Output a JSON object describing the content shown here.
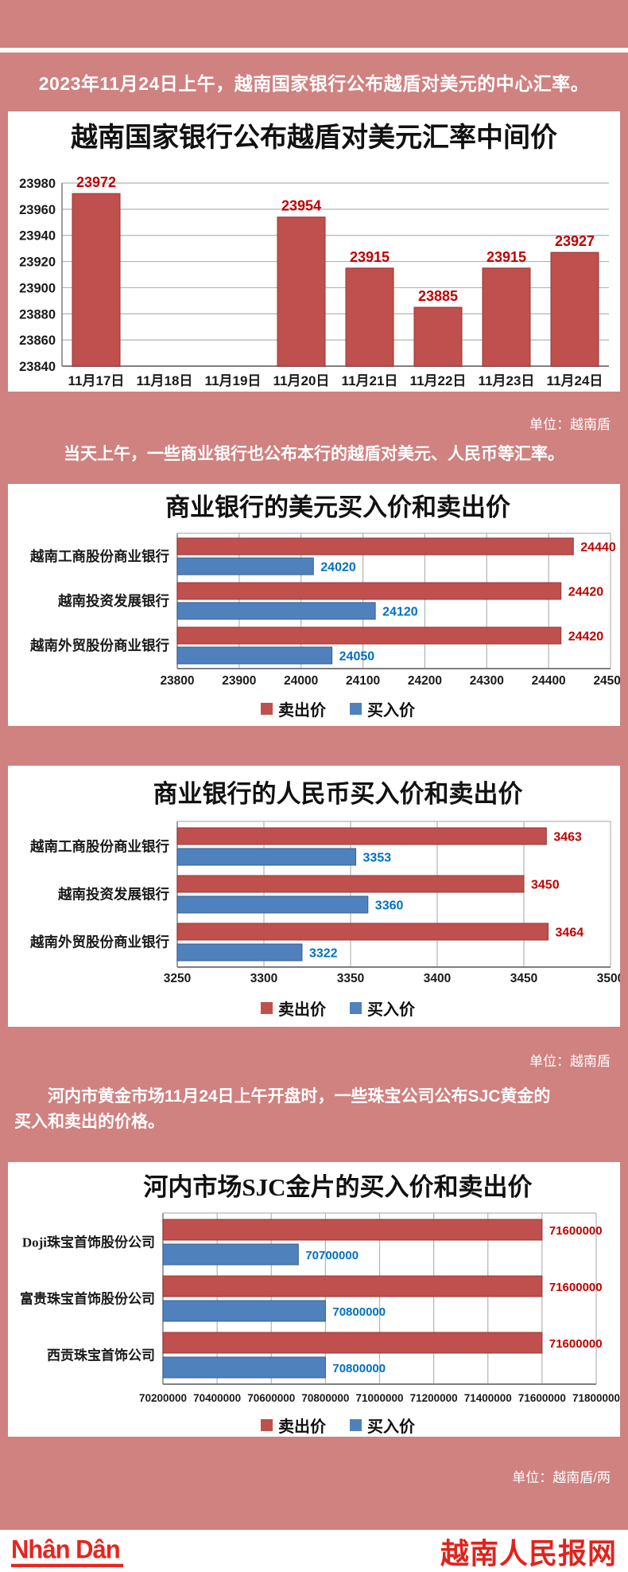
{
  "theme": {
    "background_pink": "#cf8280",
    "bar_red": "#c0504d",
    "bar_blue": "#4f81bd",
    "label_red": "#c00000",
    "label_blue": "#0070c0"
  },
  "banners": {
    "intro": "2023年11月24日上午，越南国家银行公布越盾对美元的中心汇率。",
    "banks_note": "当天上午，一些商业银行也公布本行的越盾对美元、人民币等汇率。",
    "gold_note_line1": "河内市黄金市场11月24日上午开盘时，一些珠宝公司公布SJC黄金的",
    "gold_note_line2": "买入和卖出的价格。"
  },
  "units": {
    "central_rate": "单位：越南盾",
    "cny_chart": "单位：越南盾",
    "gold_chart": "单位：越南盾/两"
  },
  "footer": {
    "logo": "Nhân Dân",
    "site_name": "越南人民报网"
  },
  "chart_data": [
    {
      "id": "central-rate",
      "type": "bar",
      "title": "越南国家银行公布越盾对美元汇率中间价",
      "categories": [
        "11月17日",
        "11月18日",
        "11月19日",
        "11月20日",
        "11月21日",
        "11月22日",
        "11月23日",
        "11月24日"
      ],
      "values": [
        23972,
        null,
        null,
        23954,
        23915,
        23885,
        23915,
        23927
      ],
      "ylim": [
        23840,
        23980
      ],
      "ystep": 20,
      "bar_color": "#c0504d",
      "label_color": "#c00000",
      "unit": "越南盾",
      "grid": true
    },
    {
      "id": "usd-bank-rates",
      "type": "hbar",
      "title": "商业银行的美元买入价和卖出价",
      "categories": [
        "越南工商股份商业银行",
        "越南投资发展银行",
        "越南外贸股份商业银行"
      ],
      "series": [
        {
          "name": "卖出价",
          "color": "#c0504d",
          "stroke": "#953735",
          "label_color": "#c00000",
          "values": [
            24440,
            24420,
            24420
          ]
        },
        {
          "name": "买入价",
          "color": "#4f81bd",
          "stroke": "#366092",
          "label_color": "#0070c0",
          "values": [
            24020,
            24120,
            24050
          ]
        }
      ],
      "xlim": [
        23800,
        24500
      ],
      "xstep": 100,
      "legend_position": "bottom",
      "grid": true
    },
    {
      "id": "cny-bank-rates",
      "type": "hbar",
      "title": "商业银行的人民币买入价和卖出价",
      "categories": [
        "越南工商股份商业银行",
        "越南投资发展银行",
        "越南外贸股份商业银行"
      ],
      "series": [
        {
          "name": "卖出价",
          "color": "#c0504d",
          "stroke": "#953735",
          "label_color": "#c00000",
          "values": [
            3463,
            3450,
            3464
          ]
        },
        {
          "name": "买入价",
          "color": "#4f81bd",
          "stroke": "#366092",
          "label_color": "#0070c0",
          "values": [
            3353,
            3360,
            3322
          ]
        }
      ],
      "xlim": [
        3250,
        3500
      ],
      "xstep": 50,
      "legend_position": "bottom",
      "grid": true
    },
    {
      "id": "sjc-gold-prices",
      "type": "hbar",
      "title": "河内市场SJC金片的买入价和卖出价",
      "categories": [
        "Doji珠宝首饰股份公司",
        "富贵珠宝首饰股份公司",
        "西贡珠宝首饰公司"
      ],
      "series": [
        {
          "name": "卖出价",
          "color": "#c0504d",
          "stroke": "#953735",
          "label_color": "#c00000",
          "values": [
            71600000,
            71600000,
            71600000
          ]
        },
        {
          "name": "买入价",
          "color": "#4f81bd",
          "stroke": "#366092",
          "label_color": "#0070c0",
          "values": [
            70700000,
            70800000,
            70800000
          ]
        }
      ],
      "xlim": [
        70200000,
        71800000
      ],
      "xstep": 200000,
      "legend_position": "bottom",
      "grid": true
    }
  ]
}
